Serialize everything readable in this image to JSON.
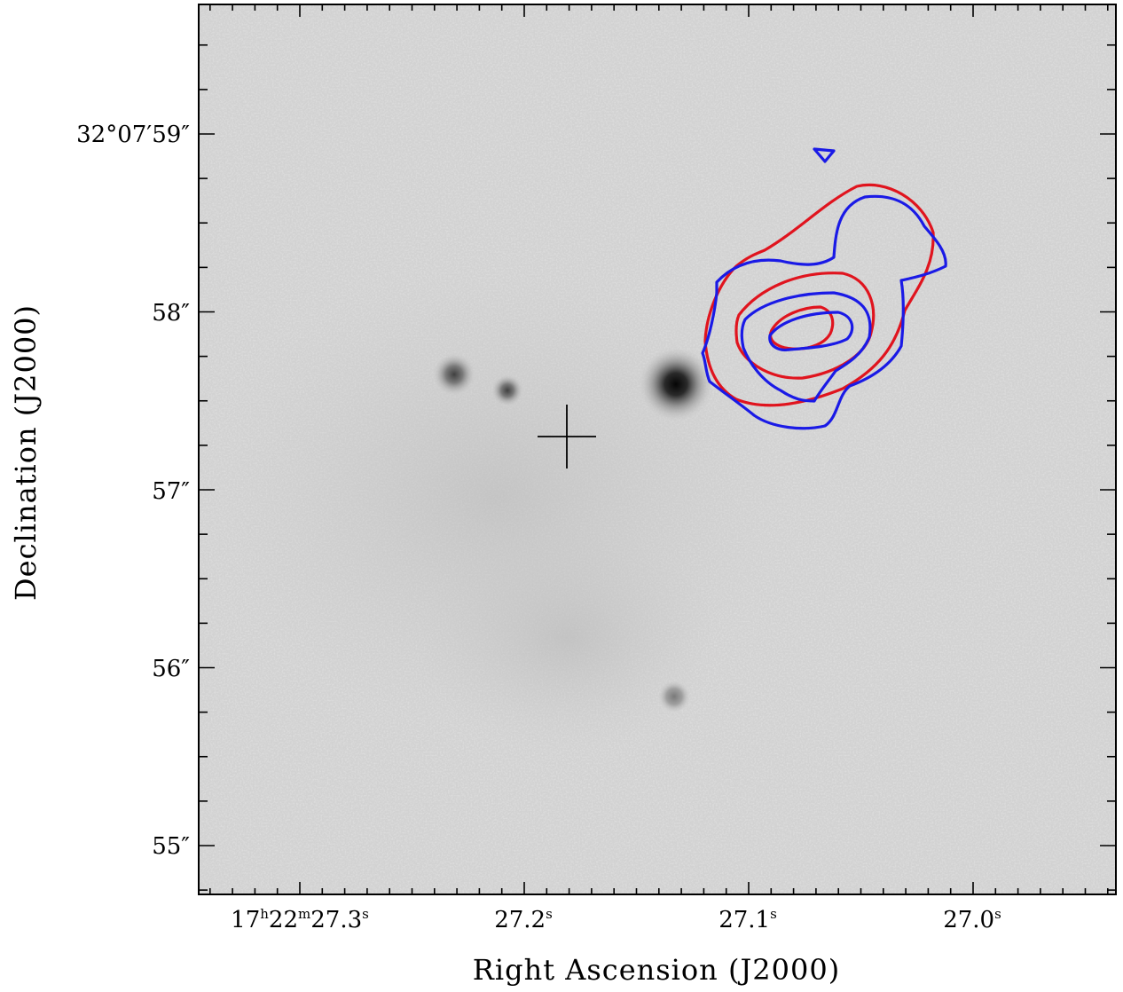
{
  "image": {
    "kind": "greyscale sky image with radio contour overlay",
    "axes": {
      "x_title": "Right Ascension (J2000)",
      "y_title": "Declination (J2000)",
      "x_ticks": [
        {
          "parts": [
            "17",
            "h",
            "22",
            "m",
            "27.3",
            "s"
          ]
        },
        {
          "parts": [
            "",
            "",
            "",
            "",
            "27.2",
            "s"
          ]
        },
        {
          "parts": [
            "",
            "",
            "",
            "",
            "27.1",
            "s"
          ]
        },
        {
          "parts": [
            "",
            "",
            "",
            "",
            "27.0",
            "s"
          ]
        }
      ],
      "y_ticks": [
        "32°07′59″",
        "58″",
        "57″",
        "56″",
        "55″"
      ]
    },
    "contours": {
      "red_color": "#e0141e",
      "blue_color": "#1a1ae6"
    },
    "marker": "cross"
  }
}
